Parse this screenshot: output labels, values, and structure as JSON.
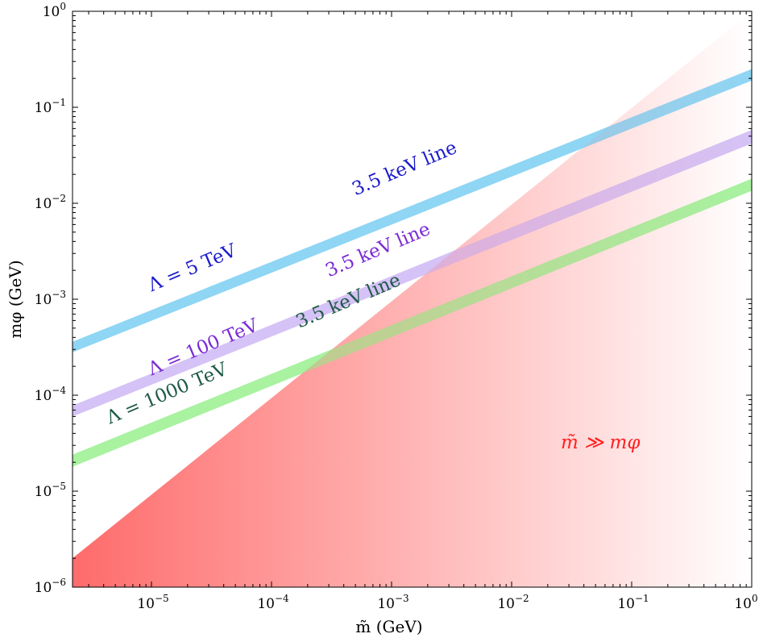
{
  "chart_data": {
    "type": "area",
    "title": "",
    "xlabel": "m̃ (GeV)",
    "ylabel": "mφ (GeV)",
    "x_scale": "log",
    "y_scale": "log",
    "xlim": [
      2.2e-06,
      1
    ],
    "ylim": [
      1e-06,
      1
    ],
    "x_ticks": [
      {
        "value": 1e-05,
        "base": "10",
        "exp": "−5"
      },
      {
        "value": 0.0001,
        "base": "10",
        "exp": "−4"
      },
      {
        "value": 0.001,
        "base": "10",
        "exp": "−3"
      },
      {
        "value": 0.01,
        "base": "10",
        "exp": "−2"
      },
      {
        "value": 0.1,
        "base": "10",
        "exp": "−1"
      },
      {
        "value": 1,
        "base": "10",
        "exp": "0"
      }
    ],
    "y_ticks": [
      {
        "value": 1e-06,
        "base": "10",
        "exp": "−6"
      },
      {
        "value": 1e-05,
        "base": "10",
        "exp": "−5"
      },
      {
        "value": 0.0001,
        "base": "10",
        "exp": "−4"
      },
      {
        "value": 0.001,
        "base": "10",
        "exp": "−3"
      },
      {
        "value": 0.01,
        "base": "10",
        "exp": "−2"
      },
      {
        "value": 0.1,
        "base": "10",
        "exp": "−1"
      },
      {
        "value": 1,
        "base": "10",
        "exp": "0"
      }
    ],
    "region": {
      "name": "m̃ ≫ mφ",
      "label": "m̃ ≫ mφ",
      "color": "#ff6b6b",
      "boundary": [
        [
          2.2e-06,
          2e-06
        ],
        [
          1,
          1
        ]
      ]
    },
    "series": [
      {
        "name": "Λ = 5 TeV",
        "lambda_label": "Λ = 5 TeV",
        "line_label": "3.5 keV line",
        "color": "#8fd6f4",
        "text_color": "#1a1acc",
        "lower": [
          [
            2.2e-06,
            0.00028
          ],
          [
            1,
            0.19
          ]
        ],
        "upper": [
          [
            2.2e-06,
            0.00036
          ],
          [
            1,
            0.25
          ]
        ]
      },
      {
        "name": "Λ = 100 TeV",
        "lambda_label": "Λ = 100 TeV",
        "line_label": "3.5 keV line",
        "color": "#d6c2f5",
        "text_color": "#7a2ad6",
        "lower": [
          [
            2.2e-06,
            6e-05
          ],
          [
            1,
            0.042
          ]
        ],
        "upper": [
          [
            2.2e-06,
            7.8e-05
          ],
          [
            1,
            0.058
          ]
        ]
      },
      {
        "name": "Λ = 1000 TeV",
        "lambda_label": "Λ = 1000 TeV",
        "line_label": "3.5 keV line",
        "color": "#a8f2a0",
        "text_color": "#1f5a45",
        "lower": [
          [
            2.2e-06,
            1.8e-05
          ],
          [
            1,
            0.0135
          ]
        ],
        "upper": [
          [
            2.2e-06,
            2.4e-05
          ],
          [
            1,
            0.018
          ]
        ]
      }
    ]
  }
}
